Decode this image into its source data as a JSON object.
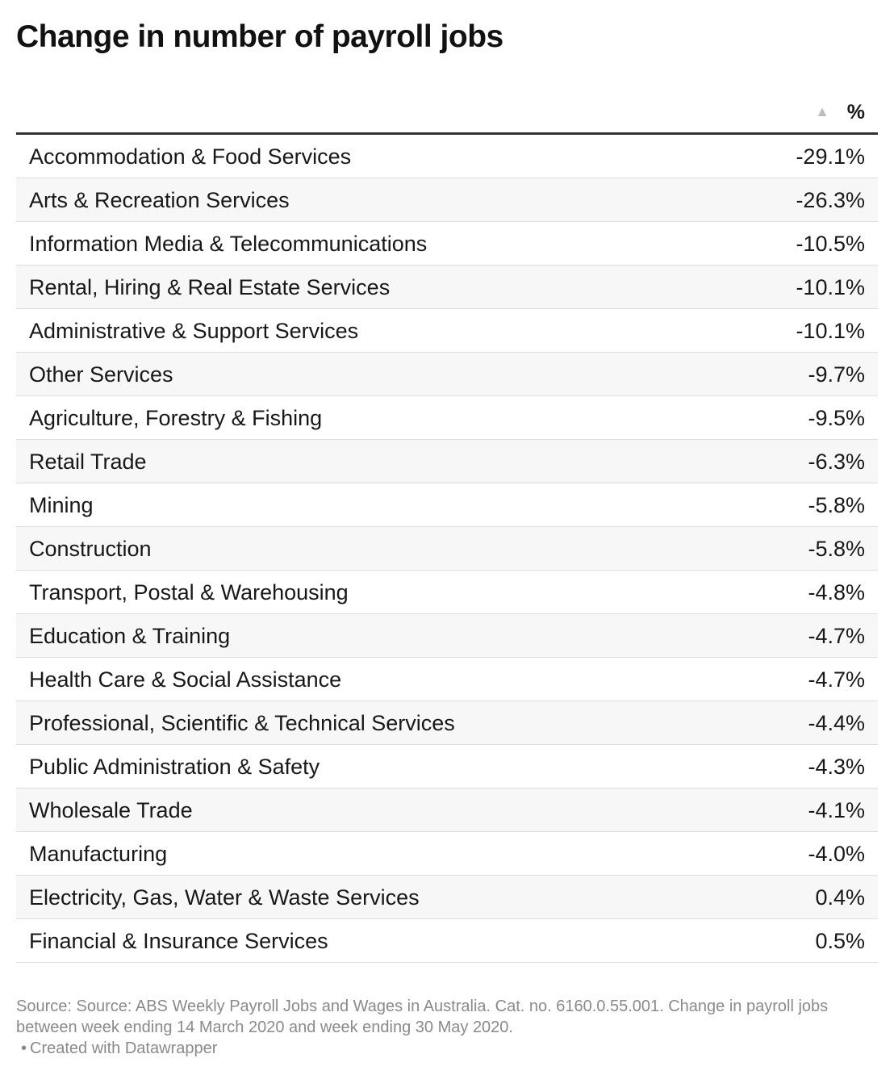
{
  "title": "Change in number of payroll jobs",
  "chart_data": {
    "type": "table",
    "title": "Change in number of payroll jobs",
    "columns": [
      "",
      "%"
    ],
    "sort": "ascending",
    "rows": [
      {
        "industry": "Accommodation & Food Services",
        "value": -29.1,
        "display": "-29.1%"
      },
      {
        "industry": "Arts & Recreation Services",
        "value": -26.3,
        "display": "-26.3%"
      },
      {
        "industry": "Information Media & Telecommunications",
        "value": -10.5,
        "display": "-10.5%"
      },
      {
        "industry": "Rental, Hiring & Real Estate Services",
        "value": -10.1,
        "display": "-10.1%"
      },
      {
        "industry": "Administrative & Support Services",
        "value": -10.1,
        "display": "-10.1%"
      },
      {
        "industry": "Other Services",
        "value": -9.7,
        "display": "-9.7%"
      },
      {
        "industry": "Agriculture, Forestry & Fishing",
        "value": -9.5,
        "display": "-9.5%"
      },
      {
        "industry": "Retail Trade",
        "value": -6.3,
        "display": "-6.3%"
      },
      {
        "industry": "Mining",
        "value": -5.8,
        "display": "-5.8%"
      },
      {
        "industry": "Construction",
        "value": -5.8,
        "display": "-5.8%"
      },
      {
        "industry": "Transport, Postal & Warehousing",
        "value": -4.8,
        "display": "-4.8%"
      },
      {
        "industry": "Education & Training",
        "value": -4.7,
        "display": "-4.7%"
      },
      {
        "industry": "Health Care & Social Assistance",
        "value": -4.7,
        "display": "-4.7%"
      },
      {
        "industry": "Professional, Scientific & Technical Services",
        "value": -4.4,
        "display": "-4.4%"
      },
      {
        "industry": "Public Administration & Safety",
        "value": -4.3,
        "display": "-4.3%"
      },
      {
        "industry": "Wholesale Trade",
        "value": -4.1,
        "display": "-4.1%"
      },
      {
        "industry": "Manufacturing",
        "value": -4.0,
        "display": "-4.0%"
      },
      {
        "industry": "Electricity, Gas, Water & Waste Services",
        "value": 0.4,
        "display": "0.4%"
      },
      {
        "industry": "Financial & Insurance Services",
        "value": 0.5,
        "display": "0.5%"
      }
    ]
  },
  "header": {
    "sort_icon": "sort-ascending-icon",
    "sort_glyph": "▲",
    "value_column": "%"
  },
  "footer": {
    "source": "Source: Source: ABS Weekly Payroll Jobs and Wages in Australia. Cat. no. 6160.0.55.001. Change in payroll jobs between week ending 14 March 2020 and week ending 30 May 2020.",
    "credit_dot": "•",
    "credit": "Created with Datawrapper"
  }
}
